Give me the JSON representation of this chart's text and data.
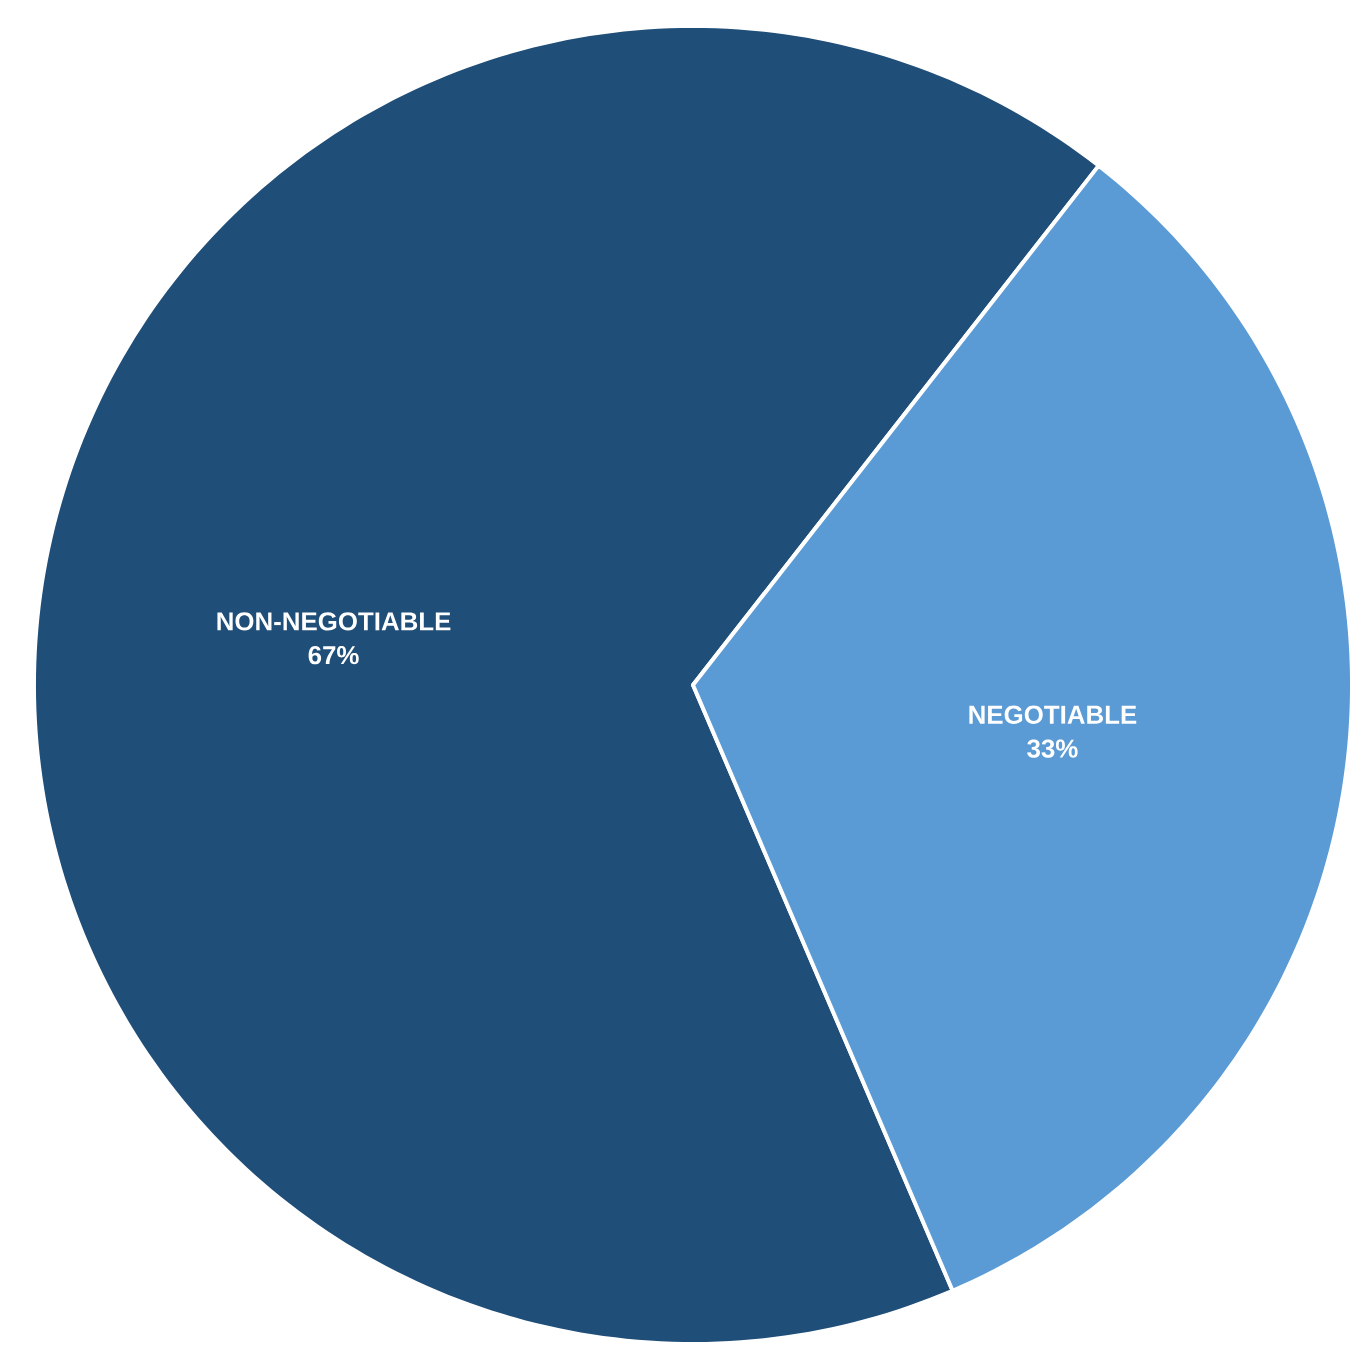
{
  "chart_data": {
    "type": "pie",
    "categories": [
      "NON-NEGOTIABLE",
      "NEGOTIABLE"
    ],
    "values": [
      67,
      33
    ],
    "colors": [
      "#1f4e79",
      "#5b9bd5"
    ],
    "value_labels": [
      "67%",
      "33%"
    ]
  }
}
